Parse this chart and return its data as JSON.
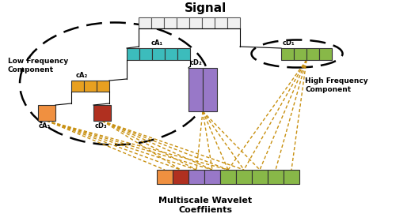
{
  "title": "Signal",
  "subtitle": "Multiscale Wavelet\nCoeffiients",
  "label_low": "Low Frequency\nComponent",
  "label_high": "High Frequency\nComponent",
  "bg_color": "#ffffff",
  "signal_color": "#f0f0f0",
  "signal_edge": "#555555",
  "cA1_color": "#3cbcbc",
  "cA2_color": "#e8a020",
  "cA3_color": "#f09040",
  "cD1_color": "#88b848",
  "cD2_color": "#9878c8",
  "cD3_color": "#b03020",
  "arrow_color": "#c89010"
}
